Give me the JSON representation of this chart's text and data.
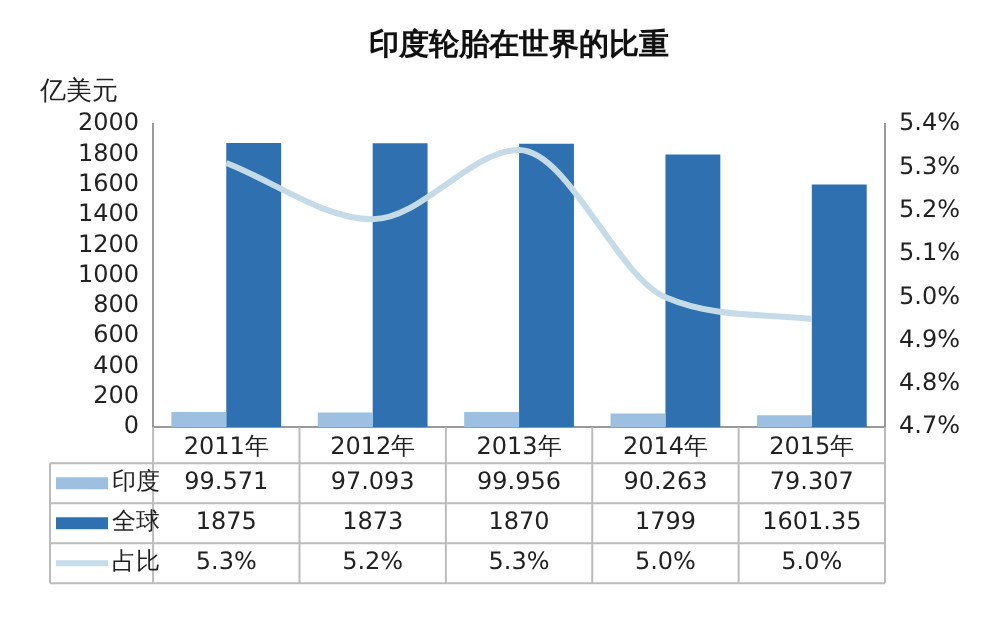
{
  "chart_data": {
    "type": "bar",
    "title": "印度轮胎在世界的比重",
    "ylabel": "亿美元",
    "categories": [
      "2011年",
      "2012年",
      "2013年",
      "2014年",
      "2015年"
    ],
    "series": [
      {
        "name": "印度",
        "color": "#9dc0e0",
        "values": [
          99.571,
          97.093,
          99.956,
          90.263,
          79.307
        ],
        "value_labels": [
          "99.571",
          "97.093",
          "99.956",
          "90.263",
          "79.307"
        ]
      },
      {
        "name": "全球",
        "color": "#2e70b0",
        "values": [
          1875,
          1873,
          1870,
          1799,
          1601.35
        ],
        "value_labels": [
          "1875",
          "1873",
          "1870",
          "1799",
          "1601.35"
        ]
      },
      {
        "name": "占比",
        "type": "line",
        "axis": "y2",
        "color": "#c5dce8",
        "values": [
          5.31,
          5.18,
          5.34,
          5.0,
          4.95
        ],
        "value_labels": [
          "5.3%",
          "5.2%",
          "5.3%",
          "5.0%",
          "5.0%"
        ]
      }
    ],
    "ylim": [
      0,
      2000
    ],
    "yticks": [
      0,
      200,
      400,
      600,
      800,
      1000,
      1200,
      1400,
      1600,
      1800,
      2000
    ],
    "y2lim": [
      4.7,
      5.4
    ],
    "y2ticks": [
      {
        "value": 4.7,
        "label": "4.7%"
      },
      {
        "value": 4.8,
        "label": "4.8%"
      },
      {
        "value": 4.9,
        "label": "4.9%"
      },
      {
        "value": 5.0,
        "label": "5.0%"
      },
      {
        "value": 5.1,
        "label": "5.1%"
      },
      {
        "value": 5.2,
        "label": "5.2%"
      },
      {
        "value": 5.3,
        "label": "5.3%"
      },
      {
        "value": 5.4,
        "label": "5.4%"
      }
    ],
    "grid": false,
    "legend": "bottom",
    "marker": "none",
    "line_style": "solid"
  }
}
